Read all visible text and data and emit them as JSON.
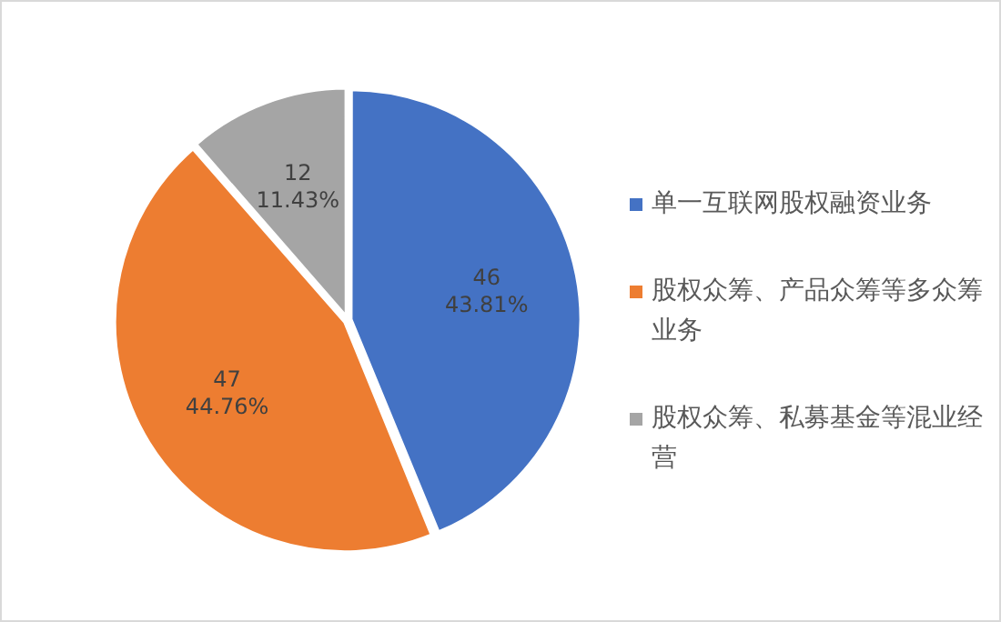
{
  "chart_data": {
    "type": "pie",
    "categories": [
      "单一互联网股权融资业务",
      "股权众筹、产品众筹等多众筹业务",
      "股权众筹、私募基金等混业经营"
    ],
    "values": [
      46,
      47,
      12
    ],
    "colors": [
      "#4472c4",
      "#ed7d31",
      "#a5a5a5"
    ],
    "value_labels": [
      "46\n43.81%",
      "47\n44.76%",
      "12\n11.43%"
    ],
    "legend": "right"
  }
}
